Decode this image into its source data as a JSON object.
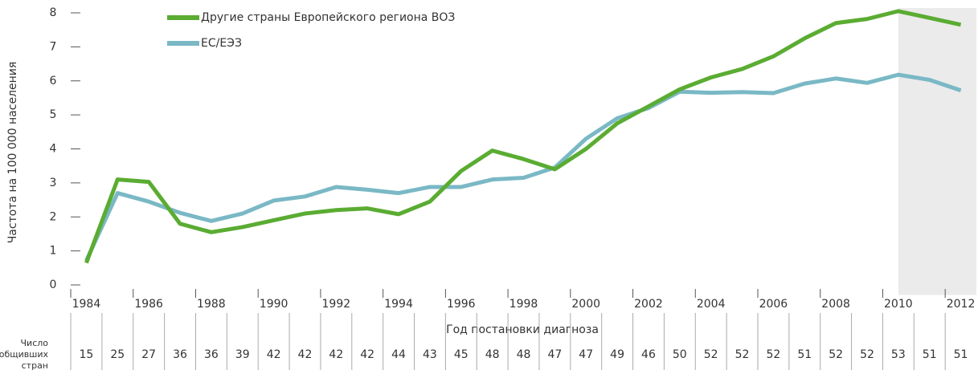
{
  "chart_data": {
    "type": "line",
    "y_label": "Частота на 100 000 населения",
    "x_label": "Год постановки диагноза",
    "x": [
      1984,
      1985,
      1986,
      1987,
      1988,
      1989,
      1990,
      1991,
      1992,
      1993,
      1994,
      1995,
      1996,
      1997,
      1998,
      1999,
      2000,
      2001,
      2002,
      2003,
      2004,
      2005,
      2006,
      2007,
      2008,
      2009,
      2010,
      2011,
      2012
    ],
    "series": [
      {
        "name": "Другие страны Европейского региона ВОЗ",
        "color": "#5aac32",
        "values": [
          0.65,
          3.1,
          3.03,
          1.8,
          1.55,
          1.7,
          1.9,
          2.1,
          2.2,
          2.25,
          2.08,
          2.45,
          3.35,
          3.95,
          3.7,
          3.4,
          4.0,
          4.75,
          5.25,
          5.75,
          6.1,
          6.35,
          6.72,
          7.25,
          7.7,
          7.82,
          8.05,
          7.85,
          7.65
        ]
      },
      {
        "name": "ЕС/ЕЭЗ",
        "color": "#7ab8c5",
        "values": [
          0.72,
          2.7,
          2.45,
          2.12,
          1.88,
          2.1,
          2.48,
          2.6,
          2.88,
          2.8,
          2.7,
          2.88,
          2.88,
          3.1,
          3.15,
          3.45,
          4.3,
          4.9,
          5.2,
          5.68,
          5.65,
          5.67,
          5.64,
          5.92,
          6.07,
          5.94,
          6.18,
          6.03,
          5.72
        ]
      }
    ],
    "xlim": [
      1983.5,
      2012.5
    ],
    "xticks": [
      1984,
      1986,
      1988,
      1990,
      1992,
      1994,
      1996,
      1998,
      2000,
      2002,
      2004,
      2006,
      2008,
      2010,
      2012
    ],
    "ylim": [
      0,
      8
    ],
    "yticks": [
      0,
      1,
      2,
      3,
      4,
      5,
      6,
      7,
      8
    ],
    "shaded_from": 2010,
    "shade_color": "#ebebeb",
    "legend": "top-left",
    "reporting_countries": {
      "label_lines": [
        "Число",
        "сообщивших",
        "стран"
      ],
      "values": [
        15,
        25,
        27,
        36,
        36,
        39,
        42,
        42,
        42,
        42,
        44,
        43,
        45,
        48,
        48,
        47,
        47,
        49,
        46,
        50,
        52,
        52,
        52,
        51,
        52,
        52,
        53,
        51,
        51
      ]
    }
  }
}
